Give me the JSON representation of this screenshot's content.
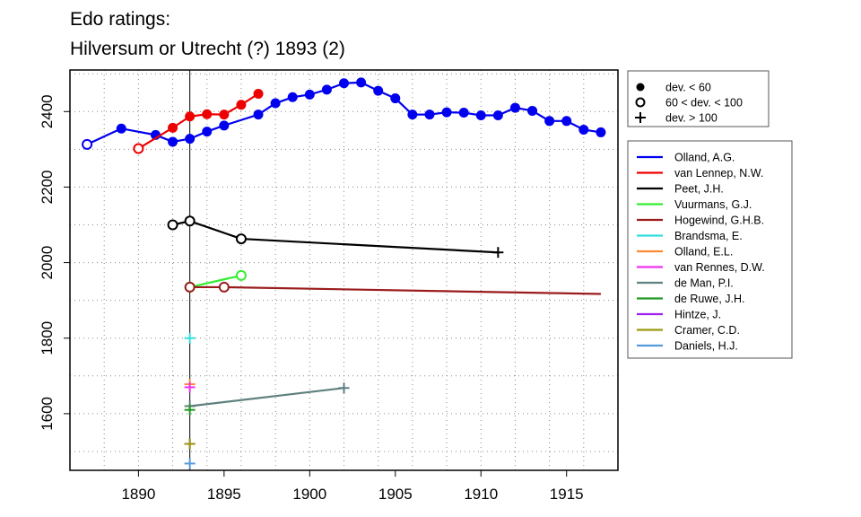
{
  "chart_data": {
    "type": "line",
    "title": "Edo ratings:",
    "subtitle": "Hilversum or Utrecht (?) 1893 (2)",
    "xlim": [
      1886,
      1918
    ],
    "ylim": [
      1450,
      2510
    ],
    "x_ticks": [
      1890,
      1895,
      1900,
      1905,
      1910,
      1915
    ],
    "y_ticks": [
      1600,
      1800,
      2000,
      2200,
      2400
    ],
    "grid": true,
    "reference_line_x": 1893,
    "marker_legend": [
      {
        "symbol": "filled-circle",
        "label": "dev. < 60"
      },
      {
        "symbol": "open-circle",
        "label": "60 < dev. < 100"
      },
      {
        "symbol": "plus",
        "label": "dev. > 100"
      }
    ],
    "series": [
      {
        "name": "Olland, A.G.",
        "color": "#0000ee",
        "points": [
          [
            1887,
            2313,
            "o"
          ],
          [
            1889,
            2355,
            "f"
          ],
          [
            1891,
            2338,
            "f"
          ],
          [
            1892,
            2320,
            "f"
          ],
          [
            1893,
            2328,
            "f"
          ],
          [
            1894,
            2347,
            "f"
          ],
          [
            1895,
            2363,
            "f"
          ],
          [
            1897,
            2392,
            "f"
          ],
          [
            1898,
            2422,
            "f"
          ],
          [
            1899,
            2438,
            "f"
          ],
          [
            1900,
            2445,
            "f"
          ],
          [
            1901,
            2458,
            "f"
          ],
          [
            1902,
            2475,
            "f"
          ],
          [
            1903,
            2477,
            "f"
          ],
          [
            1904,
            2455,
            "f"
          ],
          [
            1905,
            2435,
            "f"
          ],
          [
            1906,
            2392,
            "f"
          ],
          [
            1907,
            2392,
            "f"
          ],
          [
            1908,
            2398,
            "f"
          ],
          [
            1909,
            2397,
            "f"
          ],
          [
            1910,
            2390,
            "f"
          ],
          [
            1911,
            2390,
            "f"
          ],
          [
            1912,
            2410,
            "f"
          ],
          [
            1913,
            2402,
            "f"
          ],
          [
            1914,
            2375,
            "f"
          ],
          [
            1915,
            2375,
            "f"
          ],
          [
            1916,
            2352,
            "f"
          ],
          [
            1917,
            2345,
            "f"
          ]
        ]
      },
      {
        "name": "van Lennep, N.W.",
        "color": "#ee0000",
        "points": [
          [
            1890,
            2302,
            "o"
          ],
          [
            1892,
            2357,
            "f"
          ],
          [
            1893,
            2387,
            "f"
          ],
          [
            1894,
            2393,
            "f"
          ],
          [
            1895,
            2392,
            "f"
          ],
          [
            1896,
            2418,
            "f"
          ],
          [
            1897,
            2447,
            "f"
          ]
        ]
      },
      {
        "name": "Peet, J.H.",
        "color": "#000000",
        "points": [
          [
            1892,
            2100,
            "o"
          ],
          [
            1893,
            2110,
            "o"
          ],
          [
            1896,
            2063,
            "o"
          ],
          [
            1911,
            2027,
            "p"
          ]
        ]
      },
      {
        "name": "Vuurmans, G.J.",
        "color": "#33ee33",
        "points": [
          [
            1893,
            1935,
            "o"
          ],
          [
            1896,
            1966,
            "o"
          ]
        ]
      },
      {
        "name": "Hogewind, G.H.B.",
        "color": "#9b1c1c",
        "points": [
          [
            1893,
            1935,
            "o"
          ],
          [
            1895,
            1935,
            "o"
          ],
          [
            1917,
            1917,
            "n"
          ]
        ]
      },
      {
        "name": "Brandsma, E.",
        "color": "#33dddd",
        "points": [
          [
            1893,
            1800,
            "p"
          ]
        ]
      },
      {
        "name": "Olland, E.L.",
        "color": "#ff8833",
        "points": [
          [
            1893,
            1678,
            "p"
          ]
        ]
      },
      {
        "name": "van Rennes, D.W.",
        "color": "#ee33ee",
        "points": [
          [
            1893,
            1670,
            "p"
          ]
        ]
      },
      {
        "name": "de Man, P.I.",
        "color": "#5f8080",
        "points": [
          [
            1893,
            1620,
            "p"
          ],
          [
            1902,
            1668,
            "p"
          ]
        ]
      },
      {
        "name": "de Ruwe, J.H.",
        "color": "#229922",
        "points": [
          [
            1893,
            1610,
            "p"
          ]
        ]
      },
      {
        "name": "Hintze, J.",
        "color": "#a020f0",
        "points": [
          [
            1893,
            1520,
            "p"
          ]
        ]
      },
      {
        "name": "Cramer, C.D.",
        "color": "#9a9a10",
        "points": [
          [
            1893,
            1520,
            "p"
          ]
        ]
      },
      {
        "name": "Daniels, H.J.",
        "color": "#5599dd",
        "points": [
          [
            1893,
            1468,
            "p"
          ]
        ]
      }
    ]
  }
}
